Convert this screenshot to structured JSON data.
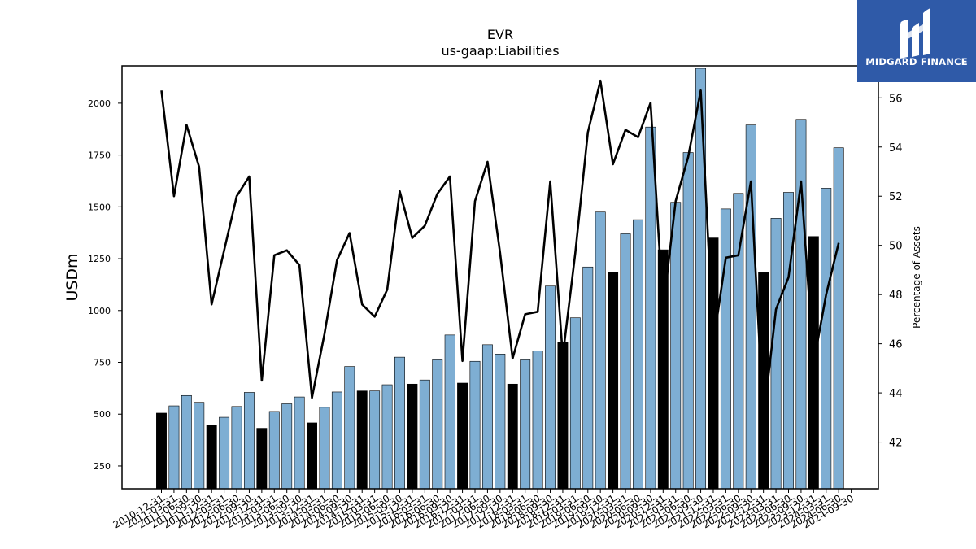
{
  "chart_data": {
    "type": "bar",
    "title": "EVR",
    "subtitle": "us-gaap:Liabilities",
    "ylabel": "USDm",
    "y2label": "Percentage of Assets",
    "ylim": [
      140,
      2180
    ],
    "y2lim": [
      40.1,
      57.3
    ],
    "yticks": [
      250,
      500,
      750,
      1000,
      1250,
      1500,
      1750,
      2000
    ],
    "y2ticks": [
      42,
      44,
      46,
      48,
      50,
      52,
      54,
      56
    ],
    "categories": [
      "2010-12-31",
      "2011-03-31",
      "2011-06-30",
      "2011-09-30",
      "2011-12-31",
      "2012-03-31",
      "2012-06-30",
      "2012-09-30",
      "2012-12-31",
      "2013-03-31",
      "2013-06-30",
      "2013-09-30",
      "2013-12-31",
      "2014-03-31",
      "2014-06-30",
      "2014-09-30",
      "2014-12-31",
      "2015-03-31",
      "2015-06-30",
      "2015-09-30",
      "2015-12-31",
      "2016-03-31",
      "2016-06-30",
      "2016-09-30",
      "2016-12-31",
      "2017-03-31",
      "2017-06-30",
      "2017-09-30",
      "2017-12-31",
      "2018-03-31",
      "2018-06-30",
      "2018-09-30",
      "2018-12-31",
      "2019-03-31",
      "2019-06-30",
      "2019-09-30",
      "2019-12-31",
      "2020-03-31",
      "2020-06-30",
      "2020-09-30",
      "2020-12-31",
      "2021-03-31",
      "2021-06-30",
      "2021-09-30",
      "2021-12-31",
      "2022-03-31",
      "2022-06-30",
      "2022-09-30",
      "2022-12-31",
      "2023-03-31",
      "2023-06-30",
      "2023-09-30",
      "2023-12-31",
      "2024-03-31",
      "2024-06-30",
      "2024-09-30"
    ],
    "series": [
      {
        "type": "bar",
        "axis": "left",
        "values": [
          505,
          540,
          590,
          557,
          447,
          485,
          537,
          605,
          432,
          513,
          550,
          583,
          458,
          533,
          607,
          730,
          612,
          612,
          642,
          775,
          645,
          665,
          762,
          882,
          650,
          755,
          835,
          790,
          645,
          762,
          805,
          1118,
          845,
          965,
          1210,
          1475,
          1185,
          1370,
          1438,
          1885,
          1293,
          1522,
          1762,
          2168,
          1350,
          1490,
          1565,
          1895,
          1183,
          1445,
          1570,
          1922,
          1357,
          1590,
          1785,
          null
        ],
        "highlight_year_end_colors": {
          "year_end": "#000000",
          "other": "#7eaed3"
        }
      },
      {
        "type": "line",
        "axis": "right",
        "color": "#000000",
        "values": [
          56.3,
          52.0,
          54.9,
          53.2,
          47.6,
          49.8,
          52.0,
          52.8,
          44.5,
          49.6,
          49.8,
          49.2,
          43.8,
          46.4,
          49.4,
          50.5,
          47.6,
          47.1,
          48.2,
          52.2,
          50.3,
          50.8,
          52.1,
          52.8,
          45.3,
          51.8,
          53.4,
          49.7,
          45.4,
          47.2,
          47.3,
          52.6,
          45.5,
          49.7,
          54.6,
          56.7,
          53.3,
          54.7,
          54.4,
          55.8,
          47.4,
          51.8,
          53.6,
          56.3,
          46.0,
          49.5,
          49.6,
          52.6,
          42.9,
          47.4,
          48.7,
          52.6,
          45.2,
          48.0,
          50.1,
          null
        ]
      }
    ],
    "grid": false,
    "legend": "none"
  },
  "logo": {
    "text": "MIDGARD FINANCE"
  }
}
